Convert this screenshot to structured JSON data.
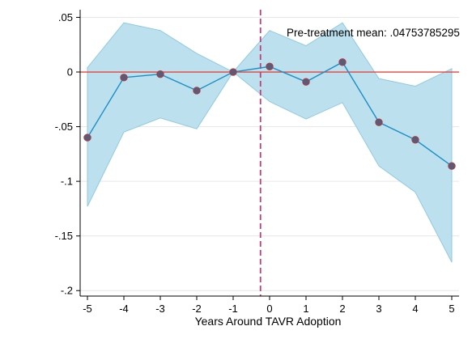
{
  "chart_data": {
    "type": "line",
    "xlabel": "Years Around TAVR Adoption",
    "ylabel": "",
    "x": [
      -5,
      -4,
      -3,
      -2,
      -1,
      0,
      1,
      2,
      3,
      4,
      5
    ],
    "x_ticks": [
      "-5",
      "-4",
      "-3",
      "-2",
      "-1",
      "0",
      "1",
      "2",
      "3",
      "4",
      "5"
    ],
    "y_ticks": [
      {
        "value": 0.05,
        "label": ".05"
      },
      {
        "value": 0,
        "label": "0"
      },
      {
        "value": -0.05,
        "label": "-.05"
      },
      {
        "value": -0.1,
        "label": "-.1"
      },
      {
        "value": -0.15,
        "label": "-.15"
      },
      {
        "value": -0.2,
        "label": "-.2"
      }
    ],
    "ylim": [
      -0.205,
      0.057
    ],
    "xlim": [
      -5.2,
      5.2
    ],
    "grid": true,
    "series": [
      {
        "values": [
          -0.06,
          -0.005,
          -0.002,
          -0.017,
          0.0,
          0.005,
          -0.009,
          0.009,
          -0.046,
          -0.062,
          -0.086
        ],
        "ci_lower": [
          -0.123,
          -0.055,
          -0.042,
          -0.052,
          0.0,
          -0.027,
          -0.043,
          -0.028,
          -0.086,
          -0.11,
          -0.174
        ],
        "ci_upper": [
          0.004,
          0.045,
          0.038,
          0.017,
          0.0,
          0.038,
          0.024,
          0.045,
          -0.006,
          -0.013,
          0.003
        ]
      }
    ],
    "reference_line_y": 0,
    "event_line_x": -0.25,
    "annotation": "Pre-treatment mean: .04753785295",
    "colors": {
      "band": "#bde0ee",
      "band_edge": "#8fcae2",
      "line": "#1a8fc6",
      "marker": "#5a5a7a",
      "marker_edge": "#b03a3a",
      "reference": "#e5443a",
      "event": "#c0407a",
      "grid": "#e6e6e6"
    }
  }
}
